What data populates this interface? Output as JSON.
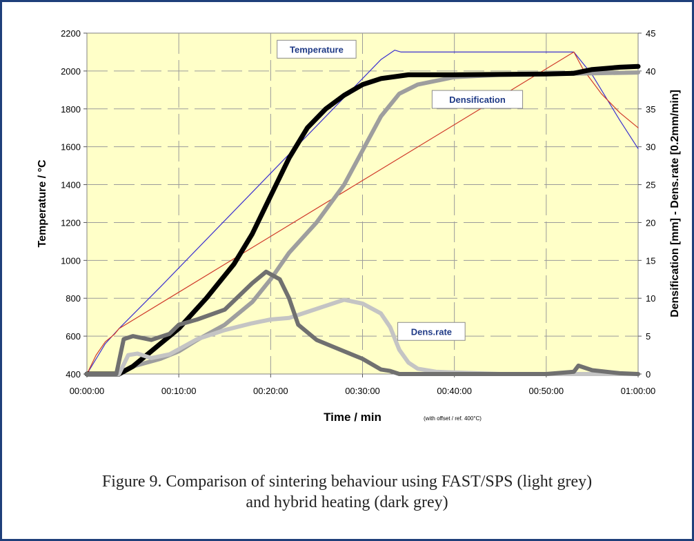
{
  "chart_data": {
    "type": "line",
    "xlabel": "Time / min",
    "xlabel_note": "(with offset / ref. 400°C)",
    "ylabel_left": "Temperature / °C",
    "ylabel_right": "Densification [mm]  -  Dens.rate [0.2mm/min]",
    "x_unit": "minutes",
    "xlim": [
      0,
      60
    ],
    "x_ticks": [
      "00:00:00",
      "00:10:00",
      "00:20:00",
      "00:30:00",
      "00:40:00",
      "00:50:00",
      "01:00:00"
    ],
    "ylim_left": [
      400,
      2200
    ],
    "y_ticks_left": [
      "400",
      "600",
      "800",
      "1000",
      "1200",
      "1400",
      "1600",
      "1800",
      "2000",
      "2200"
    ],
    "ylim_right": [
      0,
      45
    ],
    "y_ticks_right": [
      "0",
      "5",
      "10",
      "15",
      "20",
      "25",
      "30",
      "35",
      "40",
      "45"
    ],
    "grid": true,
    "background_color": "#ffffc8",
    "annotations": [
      {
        "text": "Temperature",
        "x": 25,
        "y_left": 2115
      },
      {
        "text": "Densification",
        "x": 42.5,
        "y_left": 1850
      },
      {
        "text": "Dens.rate",
        "x": 37.5,
        "y_left": 625
      }
    ],
    "series": [
      {
        "axis": "left",
        "color": "#3a2fd0",
        "width": 1.2,
        "x": [
          0,
          2,
          3.5,
          8,
          14,
          20,
          26,
          32,
          33.5,
          34.2,
          40,
          53,
          55,
          58,
          60
        ],
        "values": [
          400,
          560,
          640,
          860,
          1160,
          1460,
          1760,
          2060,
          2110,
          2100,
          2100,
          2100,
          1980,
          1740,
          1590
        ]
      },
      {
        "axis": "left",
        "color": "#d03a2a",
        "width": 1.2,
        "x": [
          0,
          1,
          2,
          3,
          3.5,
          53,
          54,
          56,
          58,
          60
        ],
        "values": [
          400,
          500,
          570,
          610,
          640,
          2100,
          2010,
          1880,
          1780,
          1700
        ]
      },
      {
        "axis": "right",
        "color": "#9e9e9e",
        "width": 6,
        "x": [
          3.2,
          5,
          8,
          10,
          12,
          15,
          18,
          20,
          22,
          25,
          28,
          30,
          32,
          34,
          36,
          40,
          45,
          50,
          55,
          60
        ],
        "values": [
          0,
          1,
          2,
          3,
          4.5,
          6.5,
          9.5,
          12.5,
          16,
          20,
          25,
          29.5,
          34,
          37,
          38.2,
          39.2,
          39.5,
          39.6,
          39.7,
          39.8
        ]
      },
      {
        "axis": "right",
        "color": "#000000",
        "width": 7,
        "x": [
          0,
          3.5,
          5,
          8,
          10,
          13,
          16,
          18,
          20,
          22,
          24,
          26,
          28,
          30,
          32,
          35,
          40,
          50,
          53,
          55,
          58,
          60
        ],
        "values": [
          0,
          0,
          1,
          4,
          6,
          10,
          14.5,
          18.5,
          23.5,
          28.5,
          32.5,
          35,
          36.8,
          38.2,
          39,
          39.5,
          39.5,
          39.6,
          39.7,
          40.2,
          40.5,
          40.6
        ]
      },
      {
        "axis": "right",
        "color": "#c4c4c4",
        "width": 6,
        "x": [
          0,
          3.5,
          4.5,
          5.5,
          7,
          9,
          12,
          15,
          18,
          20,
          22,
          24,
          26,
          28,
          30,
          32,
          33,
          34,
          35,
          36,
          38,
          40,
          45,
          60
        ],
        "values": [
          0,
          0,
          2.5,
          2.7,
          2.1,
          2.6,
          4.6,
          5.8,
          6.7,
          7.2,
          7.4,
          8.2,
          9,
          9.8,
          9.3,
          8,
          6.2,
          3.2,
          1.5,
          0.7,
          0.3,
          0.2,
          0,
          0
        ]
      },
      {
        "axis": "right",
        "color": "#707070",
        "width": 6,
        "x": [
          0,
          3.2,
          4,
          5,
          7,
          9,
          10,
          12,
          15,
          18,
          19.5,
          21,
          22,
          23,
          25,
          28,
          30,
          32,
          33,
          34,
          35,
          40,
          50,
          53,
          53.5,
          55,
          58,
          60
        ],
        "values": [
          0,
          0,
          4.6,
          5,
          4.5,
          5.3,
          6.5,
          7.2,
          8.5,
          12,
          13.5,
          12.5,
          10,
          6.5,
          4.5,
          3,
          2,
          0.6,
          0.4,
          0,
          0,
          0,
          0,
          0.3,
          1.1,
          0.5,
          0.1,
          0
        ]
      }
    ]
  },
  "caption": {
    "line1": "Figure 9. Comparison of sintering behaviour using FAST/SPS (light grey)",
    "line2": "and hybrid heating (dark grey)"
  }
}
